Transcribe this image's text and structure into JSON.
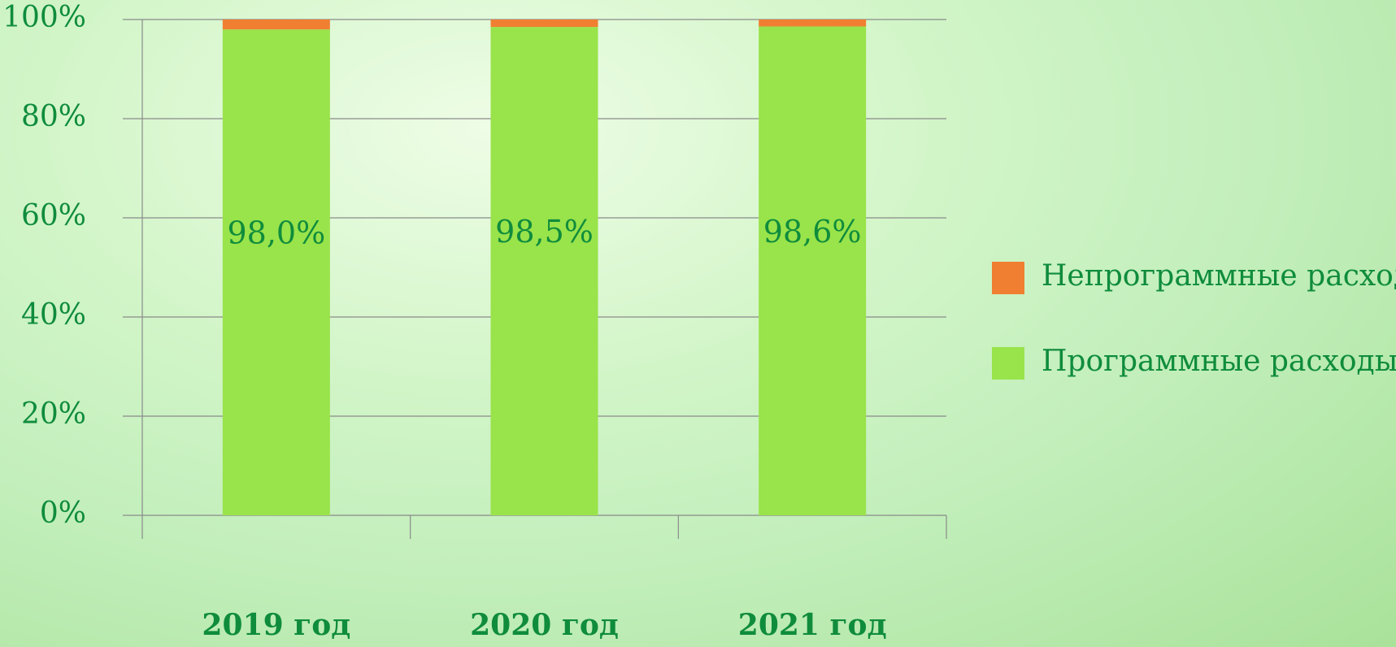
{
  "chart_data": {
    "type": "stacked_bar",
    "categories": [
      "2019 год",
      "2020 год",
      "2021 год"
    ],
    "series": [
      {
        "name": "Программные расходы",
        "color": "#99e34b",
        "values": [
          98.0,
          98.5,
          98.6
        ],
        "value_labels": [
          "98,0%",
          "98,5%",
          "98,6%"
        ]
      },
      {
        "name": "Непрограммные расходы",
        "color": "#f07f31",
        "values": [
          2.0,
          1.5,
          1.4
        ]
      }
    ],
    "ylim": [
      0,
      100
    ],
    "yticks": [
      {
        "value": 0,
        "label": "0%"
      },
      {
        "value": 20,
        "label": "20%"
      },
      {
        "value": 40,
        "label": "40%"
      },
      {
        "value": 60,
        "label": "60%"
      },
      {
        "value": 80,
        "label": "80%"
      },
      {
        "value": 100,
        "label": "100%"
      }
    ],
    "grid": true
  }
}
